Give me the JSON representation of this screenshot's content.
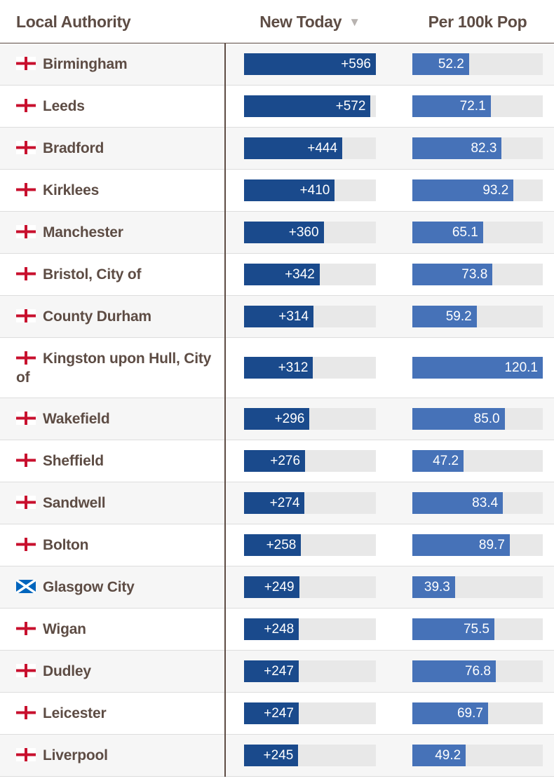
{
  "header": {
    "local_authority": "Local Authority",
    "new_today": "New Today",
    "sort_indicator": "▼",
    "per_100k": "Per 100k Pop"
  },
  "colors": {
    "new_bar": "#1a4a8c",
    "per_bar": "#4672b8",
    "track": "#e8e8e8",
    "text": "#5d4c44",
    "england_cross": "#c8102e",
    "scotland_blue": "#0065bd"
  },
  "chart_data": {
    "type": "table",
    "title": "",
    "columns": [
      "Local Authority",
      "New Today",
      "Per 100k Pop"
    ],
    "new_today_max": 596,
    "per_100k_max": 120.1,
    "rows": [
      {
        "name": "Birmingham",
        "flag": "england",
        "new_today": 596,
        "new_today_label": "+596",
        "per_100k": 52.2,
        "per_100k_label": "52.2"
      },
      {
        "name": "Leeds",
        "flag": "england",
        "new_today": 572,
        "new_today_label": "+572",
        "per_100k": 72.1,
        "per_100k_label": "72.1"
      },
      {
        "name": "Bradford",
        "flag": "england",
        "new_today": 444,
        "new_today_label": "+444",
        "per_100k": 82.3,
        "per_100k_label": "82.3"
      },
      {
        "name": "Kirklees",
        "flag": "england",
        "new_today": 410,
        "new_today_label": "+410",
        "per_100k": 93.2,
        "per_100k_label": "93.2"
      },
      {
        "name": "Manchester",
        "flag": "england",
        "new_today": 360,
        "new_today_label": "+360",
        "per_100k": 65.1,
        "per_100k_label": "65.1"
      },
      {
        "name": "Bristol, City of",
        "flag": "england",
        "new_today": 342,
        "new_today_label": "+342",
        "per_100k": 73.8,
        "per_100k_label": "73.8"
      },
      {
        "name": "County Durham",
        "flag": "england",
        "new_today": 314,
        "new_today_label": "+314",
        "per_100k": 59.2,
        "per_100k_label": "59.2"
      },
      {
        "name": "Kingston upon Hull, City of",
        "flag": "england",
        "new_today": 312,
        "new_today_label": "+312",
        "per_100k": 120.1,
        "per_100k_label": "120.1"
      },
      {
        "name": "Wakefield",
        "flag": "england",
        "new_today": 296,
        "new_today_label": "+296",
        "per_100k": 85.0,
        "per_100k_label": "85.0"
      },
      {
        "name": "Sheffield",
        "flag": "england",
        "new_today": 276,
        "new_today_label": "+276",
        "per_100k": 47.2,
        "per_100k_label": "47.2"
      },
      {
        "name": "Sandwell",
        "flag": "england",
        "new_today": 274,
        "new_today_label": "+274",
        "per_100k": 83.4,
        "per_100k_label": "83.4"
      },
      {
        "name": "Bolton",
        "flag": "england",
        "new_today": 258,
        "new_today_label": "+258",
        "per_100k": 89.7,
        "per_100k_label": "89.7"
      },
      {
        "name": "Glasgow City",
        "flag": "scotland",
        "new_today": 249,
        "new_today_label": "+249",
        "per_100k": 39.3,
        "per_100k_label": "39.3"
      },
      {
        "name": "Wigan",
        "flag": "england",
        "new_today": 248,
        "new_today_label": "+248",
        "per_100k": 75.5,
        "per_100k_label": "75.5"
      },
      {
        "name": "Dudley",
        "flag": "england",
        "new_today": 247,
        "new_today_label": "+247",
        "per_100k": 76.8,
        "per_100k_label": "76.8"
      },
      {
        "name": "Leicester",
        "flag": "england",
        "new_today": 247,
        "new_today_label": "+247",
        "per_100k": 69.7,
        "per_100k_label": "69.7"
      },
      {
        "name": "Liverpool",
        "flag": "england",
        "new_today": 245,
        "new_today_label": "+245",
        "per_100k": 49.2,
        "per_100k_label": "49.2"
      }
    ]
  }
}
